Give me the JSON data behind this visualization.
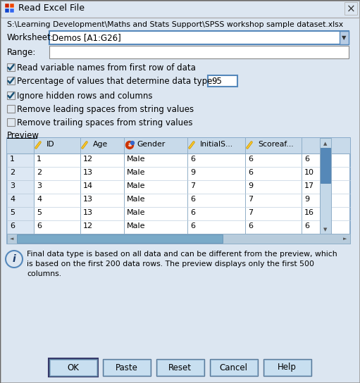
{
  "title": "Read Excel File",
  "filepath": "S:\\Learning Development\\Maths and Stats Support\\SPSS workshop sample dataset.xlsx",
  "worksheet_label": "Worksheet:",
  "worksheet_value": "Demos [A1:G26]",
  "range_label": "Range:",
  "checkbox1_text": "Read variable names from first row of data",
  "checkbox1_checked": true,
  "checkbox2_text": "Percentage of values that determine data type:",
  "checkbox2_checked": true,
  "checkbox2_value": "95",
  "checkbox3_text": "Ignore hidden rows and columns",
  "checkbox3_checked": true,
  "checkbox4_text": "Remove leading spaces from string values",
  "checkbox4_checked": false,
  "checkbox5_text": "Remove trailing spaces from string values",
  "checkbox5_checked": false,
  "preview_label": "Preview",
  "table_headers": [
    "",
    "ID",
    "Age",
    "Gender",
    "InitialS...",
    "Scoreaf...",
    ""
  ],
  "table_rows": [
    [
      "1",
      "1",
      "12",
      "Male",
      "6",
      "6",
      "6"
    ],
    [
      "2",
      "2",
      "13",
      "Male",
      "9",
      "6",
      "10"
    ],
    [
      "3",
      "3",
      "14",
      "Male",
      "7",
      "9",
      "17"
    ],
    [
      "4",
      "4",
      "13",
      "Male",
      "6",
      "7",
      "9"
    ],
    [
      "5",
      "5",
      "13",
      "Male",
      "6",
      "7",
      "16"
    ],
    [
      "6",
      "6",
      "12",
      "Male",
      "6",
      "6",
      "6"
    ]
  ],
  "info_text": "Final data type is based on all data and can be different from the preview, which\nis based on the first 200 data rows. The preview displays only the first 500\ncolumns.",
  "buttons": [
    "OK",
    "Paste",
    "Reset",
    "Cancel",
    "Help"
  ],
  "bg_color": "#dce6f1",
  "border_color": "#7aa0c4",
  "table_header_bg": "#c8daea",
  "scrollbar_thumb": "#5a8ab0",
  "scrollbar_bg": "#b0c8dc"
}
